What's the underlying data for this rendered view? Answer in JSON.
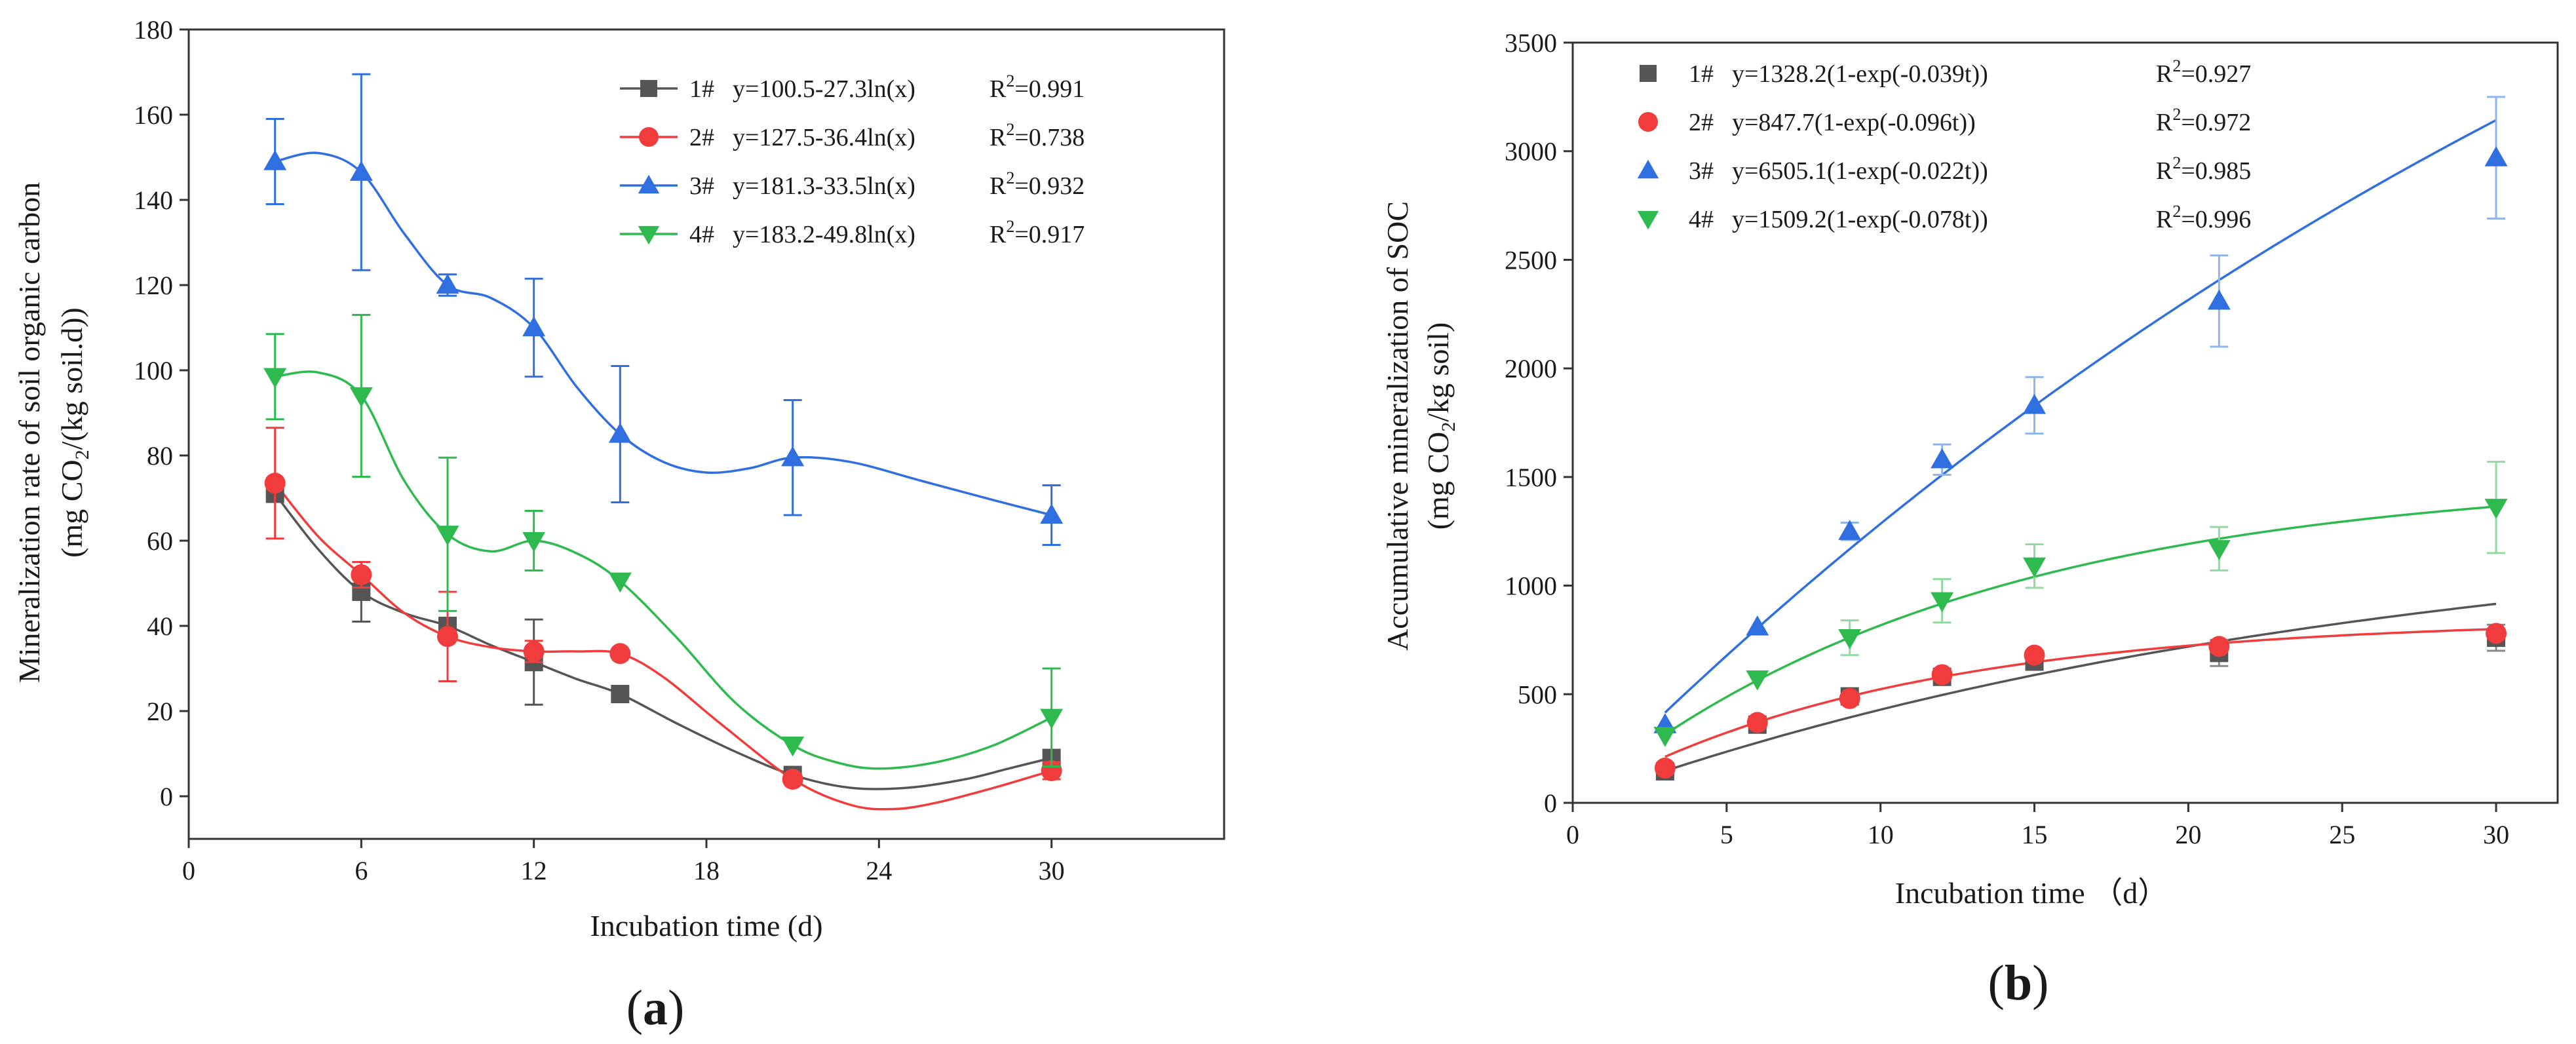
{
  "chart_data": [
    {
      "type": "line",
      "panel_label_open": "(",
      "panel_label_letter": "a",
      "panel_label_close": ")",
      "xlabel": "Incubation time (d)",
      "ylabel": "Mineralization rate of soil organic carbon",
      "ylabel2_pre": "(mg CO",
      "ylabel2_sub": "2",
      "ylabel2_post": "/(kg soil.d))",
      "xlim": [
        0,
        36
      ],
      "ylim": [
        -10,
        180
      ],
      "xticks": [
        0,
        6,
        12,
        18,
        24,
        30
      ],
      "yticks": [
        0,
        20,
        40,
        60,
        80,
        100,
        120,
        140,
        160,
        180
      ],
      "x": [
        3,
        6,
        9,
        12,
        15,
        21,
        30
      ],
      "series": [
        {
          "name": "1#",
          "equation": "y=100.5-27.3ln(x)",
          "r2_label": "R",
          "r2_sup": "2",
          "r2_value": "=0.991",
          "color": "#555555",
          "marker": "square",
          "values": [
            71,
            48,
            40,
            31.5,
            24,
            5,
            9
          ],
          "errors": [
            0,
            7,
            0,
            10,
            0,
            0,
            0
          ],
          "curve": [
            [
              3,
              71
            ],
            [
              4.5,
              58
            ],
            [
              6,
              48
            ],
            [
              7.5,
              43
            ],
            [
              9,
              40
            ],
            [
              10.5,
              35.5
            ],
            [
              12,
              31.5
            ],
            [
              13.5,
              27.5
            ],
            [
              15,
              24
            ],
            [
              17,
              17
            ],
            [
              19,
              10.5
            ],
            [
              21,
              5
            ],
            [
              23,
              2
            ],
            [
              25,
              2
            ],
            [
              27,
              4
            ],
            [
              28.5,
              6.5
            ],
            [
              30,
              9
            ]
          ]
        },
        {
          "name": "2#",
          "equation": "y=127.5-36.4ln(x)",
          "r2_label": "R",
          "r2_sup": "2",
          "r2_value": "=0.738",
          "color": "#f03c3c",
          "marker": "circle",
          "values": [
            73.5,
            52,
            37.5,
            34,
            33.5,
            4,
            6
          ],
          "errors": [
            13,
            3,
            10.5,
            2.5,
            0,
            0,
            2
          ],
          "curve": [
            [
              3,
              73.5
            ],
            [
              4.5,
              61
            ],
            [
              6,
              52
            ],
            [
              7.5,
              43
            ],
            [
              9,
              37.5
            ],
            [
              10.5,
              35
            ],
            [
              12,
              34
            ],
            [
              13.5,
              34
            ],
            [
              15,
              33.5
            ],
            [
              16.5,
              28
            ],
            [
              18.5,
              17
            ],
            [
              21,
              4
            ],
            [
              23,
              -2
            ],
            [
              24.5,
              -3
            ],
            [
              26,
              -1.5
            ],
            [
              28,
              2
            ],
            [
              30,
              6
            ]
          ]
        },
        {
          "name": "3#",
          "equation": "y=181.3-33.5ln(x)",
          "r2_label": "R",
          "r2_sup": "2",
          "r2_value": "=0.932",
          "color": "#2f6fe0",
          "marker": "triangle-up",
          "values": [
            149,
            146.5,
            120,
            110,
            85,
            79.5,
            66
          ],
          "errors": [
            10,
            23,
            2.5,
            11.5,
            16,
            13.5,
            7
          ],
          "curve": [
            [
              3,
              149
            ],
            [
              4.5,
              151
            ],
            [
              6,
              146.5
            ],
            [
              7.5,
              132
            ],
            [
              9,
              120
            ],
            [
              10.5,
              117
            ],
            [
              12,
              110
            ],
            [
              13.5,
              96
            ],
            [
              15,
              85
            ],
            [
              16.5,
              78.5
            ],
            [
              18,
              76
            ],
            [
              19.5,
              77
            ],
            [
              21,
              79.5
            ],
            [
              23,
              78.5
            ],
            [
              25.5,
              74
            ],
            [
              28,
              69.5
            ],
            [
              30,
              66
            ]
          ]
        },
        {
          "name": "4#",
          "equation": "y=183.2-49.8ln(x)",
          "r2_label": "R",
          "r2_sup": "2",
          "r2_value": "=0.917",
          "color": "#2fba4f",
          "marker": "triangle-down",
          "values": [
            98.5,
            94,
            61.5,
            60,
            50.5,
            12,
            18.5
          ],
          "errors": [
            10,
            19,
            18,
            7,
            0,
            0,
            11.5
          ],
          "curve": [
            [
              3,
              98.5
            ],
            [
              4.5,
              99.5
            ],
            [
              6,
              94
            ],
            [
              7.5,
              74
            ],
            [
              9,
              61.5
            ],
            [
              10.5,
              57.5
            ],
            [
              12,
              60
            ],
            [
              13.5,
              57
            ],
            [
              15,
              50.5
            ],
            [
              17,
              37
            ],
            [
              19,
              22
            ],
            [
              21,
              12
            ],
            [
              22.5,
              8
            ],
            [
              24,
              6.5
            ],
            [
              26,
              8
            ],
            [
              28,
              12
            ],
            [
              30,
              18.5
            ]
          ]
        }
      ]
    },
    {
      "type": "scatter",
      "panel_label_open": "(",
      "panel_label_letter": "b",
      "panel_label_close": ")",
      "xlabel": "Incubation time （d）",
      "ylabel": "Accumulative mineralization of SOC",
      "ylabel2_pre": "(mg CO",
      "ylabel2_sub": "2",
      "ylabel2_post": "/kg soil)",
      "xlim": [
        0,
        32
      ],
      "ylim": [
        0,
        3500
      ],
      "xticks": [
        0,
        5,
        10,
        15,
        20,
        25,
        30
      ],
      "yticks": [
        0,
        500,
        1000,
        1500,
        2000,
        2500,
        3000,
        3500
      ],
      "x": [
        3,
        6,
        9,
        12,
        15,
        21,
        30
      ],
      "series": [
        {
          "name": "1#",
          "equation": "y=1328.2(1-exp(-0.039t))",
          "r2_label": "R",
          "r2_sup": "2",
          "r2_value": "=0.927",
          "color": "#555555",
          "marker": "square",
          "A": 1328.2,
          "k": 0.039,
          "values": [
            145,
            360,
            490,
            580,
            650,
            690,
            760
          ],
          "errors": [
            0,
            0,
            0,
            0,
            0,
            60,
            60
          ]
        },
        {
          "name": "2#",
          "equation": "y=847.7(1-exp(-0.096t))",
          "r2_label": "R",
          "r2_sup": "2",
          "r2_value": "=0.972",
          "color": "#f03c3c",
          "marker": "circle",
          "A": 847.7,
          "k": 0.096,
          "values": [
            160,
            370,
            480,
            590,
            680,
            720,
            780
          ],
          "errors": [
            0,
            0,
            0,
            0,
            0,
            0,
            0
          ]
        },
        {
          "name": "3#",
          "equation": "y=6505.1(1-exp(-0.022t))",
          "r2_label": "R",
          "r2_sup": "2",
          "r2_value": "=0.985",
          "color": "#2f6fe0",
          "marker": "triangle-up",
          "A": 6505.1,
          "k": 0.022,
          "values": [
            360,
            810,
            1250,
            1580,
            1830,
            2310,
            2970
          ],
          "errors": [
            0,
            0,
            40,
            70,
            130,
            210,
            280
          ]
        },
        {
          "name": "4#",
          "equation": "y=1509.2(1-exp(-0.078t))",
          "r2_label": "R",
          "r2_sup": "2",
          "r2_value": "=0.996",
          "color": "#2fba4f",
          "marker": "triangle-down",
          "A": 1509.2,
          "k": 0.078,
          "values": [
            310,
            570,
            760,
            930,
            1090,
            1170,
            1360
          ],
          "errors": [
            0,
            0,
            80,
            100,
            100,
            100,
            210
          ]
        }
      ]
    }
  ]
}
